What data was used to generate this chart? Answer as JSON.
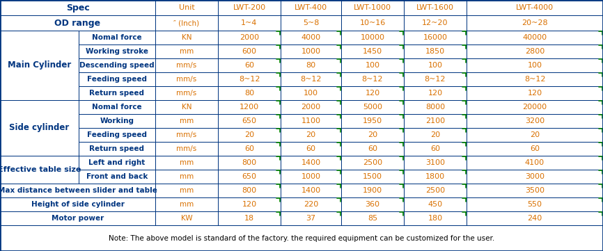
{
  "main_cylinder_rows": [
    [
      "Nomal force",
      "KN",
      "2000",
      "4000",
      "10000",
      "16000",
      "40000"
    ],
    [
      "Working stroke",
      "mm",
      "600",
      "1000",
      "1450",
      "1850",
      "2800"
    ],
    [
      "Descending speed",
      "mm/s",
      "60",
      "80",
      "100",
      "100",
      "100"
    ],
    [
      "Feeding speed",
      "mm/s",
      "8~12",
      "8~12",
      "8~12",
      "8~12",
      "8~12"
    ],
    [
      "Return speed",
      "mm/s",
      "80",
      "100",
      "120",
      "120",
      "120"
    ]
  ],
  "side_cylinder_rows": [
    [
      "Nomal force",
      "KN",
      "1200",
      "2000",
      "5000",
      "8000",
      "20000"
    ],
    [
      "Working",
      "mm",
      "650",
      "1100",
      "1950",
      "2100",
      "3200"
    ],
    [
      "Feeding speed",
      "mm/s",
      "20",
      "20",
      "20",
      "20",
      "20"
    ],
    [
      "Return speed",
      "mm/s",
      "60",
      "60",
      "60",
      "60",
      "60"
    ]
  ],
  "table_size_rows": [
    [
      "Left and right",
      "mm",
      "800",
      "1400",
      "2500",
      "3100",
      "4100"
    ],
    [
      "Front and back",
      "mm",
      "650",
      "1000",
      "1500",
      "1800",
      "3000"
    ]
  ],
  "single_rows": [
    [
      "Max distance between slider and table",
      "mm",
      "800",
      "1400",
      "1900",
      "2500",
      "3500"
    ],
    [
      "Height of side cylinder",
      "mm",
      "120",
      "220",
      "360",
      "450",
      "550"
    ],
    [
      "Motor power",
      "KW",
      "18",
      "37",
      "85",
      "180",
      "240"
    ]
  ],
  "od_vals": [
    "1~4",
    "5~8",
    "10~16",
    "12~20",
    "20~28"
  ],
  "lwt_labels": [
    "LWT-200",
    "LWT-400",
    "LWT-1000",
    "LWT-1600",
    "LWT-4000"
  ],
  "note": "Note: The above model is standard of the factory. the required equipment can be customized for the user.",
  "col_dark_blue": "#003580",
  "col_orange": "#d97000",
  "col_white": "#ffffff",
  "col_black": "#000000",
  "col_green": "#008000",
  "col_border": "#003580"
}
